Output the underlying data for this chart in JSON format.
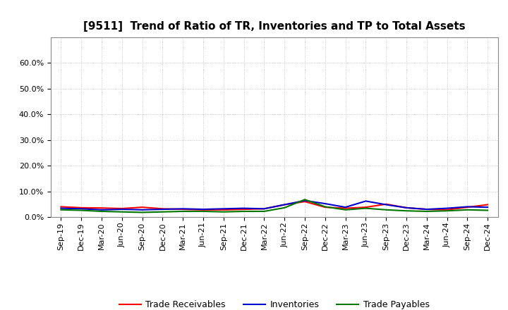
{
  "title": "[9511]  Trend of Ratio of TR, Inventories and TP to Total Assets",
  "x_labels": [
    "Sep-19",
    "Dec-19",
    "Mar-20",
    "Jun-20",
    "Sep-20",
    "Dec-20",
    "Mar-21",
    "Jun-21",
    "Sep-21",
    "Dec-21",
    "Mar-22",
    "Jun-22",
    "Sep-22",
    "Dec-22",
    "Mar-23",
    "Jun-23",
    "Sep-23",
    "Dec-23",
    "Mar-24",
    "Jun-24",
    "Sep-24",
    "Dec-24"
  ],
  "trade_receivables": [
    0.04,
    0.036,
    0.035,
    0.033,
    0.038,
    0.032,
    0.03,
    0.028,
    0.028,
    0.03,
    0.032,
    0.048,
    0.06,
    0.038,
    0.034,
    0.038,
    0.05,
    0.036,
    0.03,
    0.028,
    0.038,
    0.048
  ],
  "inventories": [
    0.034,
    0.032,
    0.028,
    0.03,
    0.028,
    0.03,
    0.032,
    0.03,
    0.032,
    0.034,
    0.032,
    0.048,
    0.064,
    0.052,
    0.038,
    0.062,
    0.048,
    0.036,
    0.03,
    0.034,
    0.04,
    0.038
  ],
  "trade_payables": [
    0.028,
    0.026,
    0.022,
    0.02,
    0.018,
    0.02,
    0.022,
    0.022,
    0.02,
    0.022,
    0.022,
    0.036,
    0.068,
    0.04,
    0.028,
    0.034,
    0.028,
    0.024,
    0.022,
    0.024,
    0.028,
    0.026
  ],
  "ylim": [
    0.0,
    0.7
  ],
  "yticks": [
    0.0,
    0.1,
    0.2,
    0.3,
    0.4,
    0.5,
    0.6
  ],
  "colors": {
    "trade_receivables": "#ff0000",
    "inventories": "#0000cc",
    "trade_payables": "#007700"
  },
  "legend_labels": [
    "Trade Receivables",
    "Inventories",
    "Trade Payables"
  ],
  "background_color": "#ffffff",
  "grid_color": "#bbbbbb",
  "title_fontsize": 11,
  "tick_fontsize": 8,
  "legend_fontsize": 9,
  "linewidth": 1.5
}
